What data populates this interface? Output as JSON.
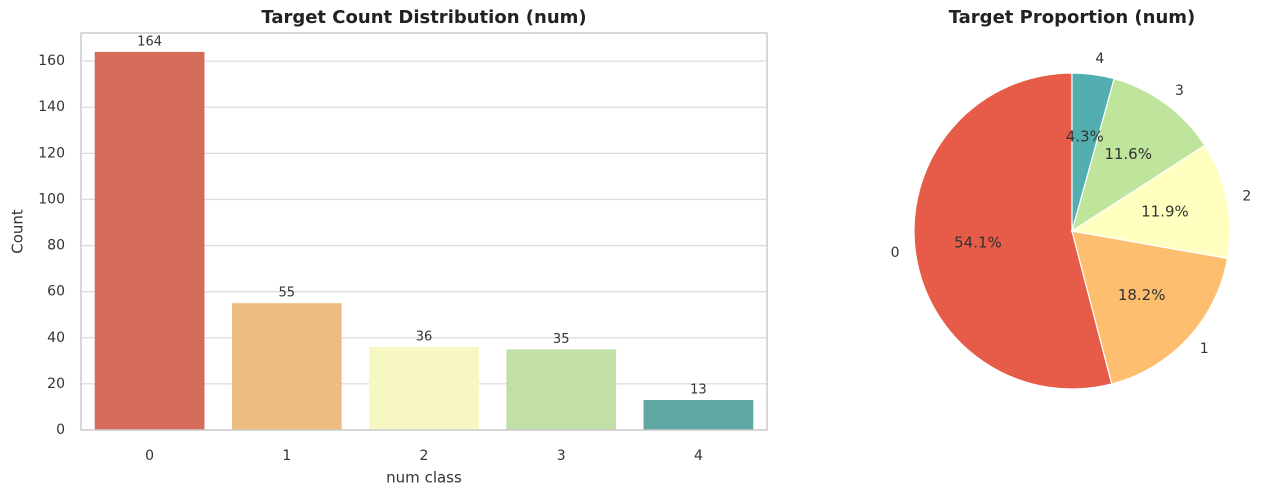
{
  "chart_data": [
    {
      "type": "bar",
      "title": "Target Count Distribution (num)",
      "x_label": "num class",
      "y_label": "Count",
      "categories": [
        "0",
        "1",
        "2",
        "3",
        "4"
      ],
      "values": [
        164,
        55,
        36,
        35,
        13
      ],
      "colors": [
        "#d56b5a",
        "#ecbc80",
        "#f7f7c3",
        "#c2dfa7",
        "#5ea7a3"
      ],
      "ylim": [
        0,
        172.2
      ],
      "yticks": [
        0,
        20,
        40,
        60,
        80,
        100,
        120,
        140,
        160
      ],
      "grid": true
    },
    {
      "type": "pie",
      "title": "Target Proportion (num)",
      "categories": [
        "0",
        "1",
        "2",
        "3",
        "4"
      ],
      "values": [
        54.1,
        18.2,
        11.9,
        11.6,
        4.3
      ],
      "value_labels": [
        "54.1%",
        "18.2%",
        "11.9%",
        "11.6%",
        "4.3%"
      ],
      "colors": [
        "#e65c48",
        "#fdbe6f",
        "#ffffbf",
        "#bfe49c",
        "#53aeb0"
      ]
    }
  ]
}
